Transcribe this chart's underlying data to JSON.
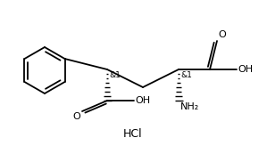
{
  "bg_color": "#ffffff",
  "line_color": "#000000",
  "text_color": "#000000",
  "hcl_text": "HCl",
  "stereo1_label": "&1",
  "stereo2_label": "&1",
  "nh2_label": "NH₂",
  "oh_label": "OH",
  "o_label": "O",
  "o2_label": "O",
  "figsize": [
    2.99,
    1.73
  ],
  "dpi": 100,
  "font_size_main": 8.0,
  "font_size_stereo": 6.5,
  "font_size_hcl": 9.0
}
